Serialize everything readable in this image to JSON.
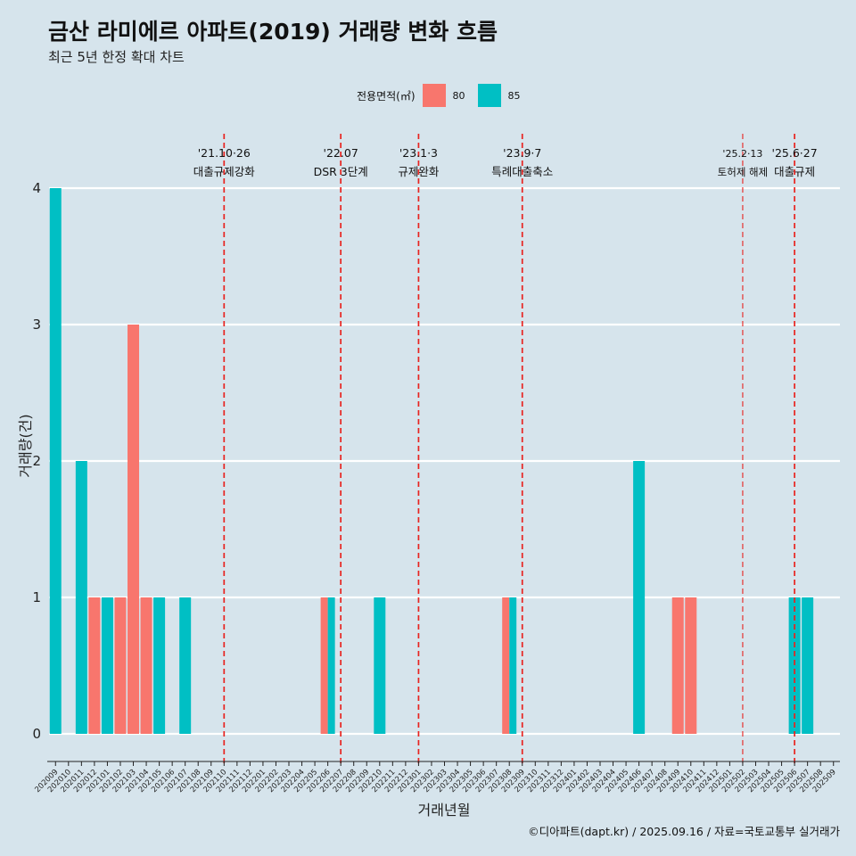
{
  "title": "금산 라미에르 아파트(2019) 거래량 변화 흐름",
  "subtitle": "최근 5년 한정 확대 차트",
  "caption": "©디아파트(dapt.kr) / 2025.09.16 / 자료=국토교통부 실거래가",
  "legend": {
    "title": "전용면적(㎡)",
    "items": [
      {
        "label": "80",
        "color": "#f8766d"
      },
      {
        "label": "85",
        "color": "#00bfc4"
      }
    ]
  },
  "chart_data": {
    "type": "bar",
    "xlabel": "거래년월",
    "ylabel": "거래량(건)",
    "ylim": [
      0,
      4
    ],
    "yticks": [
      0,
      1,
      2,
      3,
      4
    ],
    "grid": "horizontal",
    "legend_position": "top",
    "categories": [
      "202009",
      "202010",
      "202011",
      "202012",
      "202101",
      "202102",
      "202103",
      "202104",
      "202105",
      "202106",
      "202107",
      "202108",
      "202109",
      "202110",
      "202111",
      "202112",
      "202201",
      "202202",
      "202203",
      "202204",
      "202205",
      "202206",
      "202207",
      "202208",
      "202209",
      "202210",
      "202211",
      "202212",
      "202301",
      "202302",
      "202303",
      "202304",
      "202305",
      "202306",
      "202307",
      "202308",
      "202309",
      "202310",
      "202311",
      "202312",
      "202401",
      "202402",
      "202403",
      "202404",
      "202405",
      "202406",
      "202407",
      "202408",
      "202409",
      "202410",
      "202411",
      "202412",
      "202501",
      "202502",
      "202503",
      "202504",
      "202505",
      "202506",
      "202507",
      "202508",
      "202509"
    ],
    "series": [
      {
        "name": "80",
        "color": "#f8766d",
        "values": [
          0,
          0,
          0,
          1,
          0,
          1,
          3,
          1,
          0,
          0,
          0,
          0,
          0,
          0,
          0,
          0,
          0,
          0,
          0,
          0,
          0,
          1,
          0,
          0,
          0,
          0,
          0,
          0,
          0,
          0,
          0,
          0,
          0,
          0,
          0,
          1,
          0,
          0,
          0,
          0,
          0,
          0,
          0,
          0,
          0,
          0,
          0,
          0,
          1,
          1,
          0,
          0,
          0,
          0,
          0,
          0,
          0,
          0,
          0,
          0,
          0
        ]
      },
      {
        "name": "85",
        "color": "#00bfc4",
        "values": [
          4,
          0,
          2,
          0,
          1,
          0,
          0,
          0,
          1,
          0,
          1,
          0,
          0,
          0,
          0,
          0,
          0,
          0,
          0,
          0,
          0,
          1,
          0,
          0,
          0,
          1,
          0,
          0,
          0,
          0,
          0,
          0,
          0,
          0,
          0,
          1,
          0,
          0,
          0,
          0,
          0,
          0,
          0,
          0,
          0,
          2,
          0,
          0,
          0,
          0,
          0,
          0,
          0,
          0,
          0,
          0,
          0,
          1,
          1,
          0,
          0
        ]
      }
    ],
    "bars": [
      {
        "category": "202009",
        "series": "85",
        "value": 4,
        "position": "full"
      },
      {
        "category": "202011",
        "series": "85",
        "value": 2,
        "position": "full"
      },
      {
        "category": "202012",
        "series": "80",
        "value": 1,
        "position": "full"
      },
      {
        "category": "202101",
        "series": "85",
        "value": 1,
        "position": "full"
      },
      {
        "category": "202102",
        "series": "80",
        "value": 1,
        "position": "full"
      },
      {
        "category": "202103",
        "series": "80",
        "value": 3,
        "position": "full"
      },
      {
        "category": "202104",
        "series": "80",
        "value": 1,
        "position": "full"
      },
      {
        "category": "202105",
        "series": "85",
        "value": 1,
        "position": "full"
      },
      {
        "category": "202107",
        "series": "85",
        "value": 1,
        "position": "full"
      },
      {
        "category": "202206",
        "series": "80",
        "value": 1,
        "position": "left"
      },
      {
        "category": "202206",
        "series": "85",
        "value": 1,
        "position": "right"
      },
      {
        "category": "202210",
        "series": "85",
        "value": 1,
        "position": "full"
      },
      {
        "category": "202308",
        "series": "80",
        "value": 1,
        "position": "left"
      },
      {
        "category": "202308",
        "series": "85",
        "value": 1,
        "position": "right"
      },
      {
        "category": "202406",
        "series": "85",
        "value": 2,
        "position": "full"
      },
      {
        "category": "202409",
        "series": "80",
        "value": 1,
        "position": "full"
      },
      {
        "category": "202410",
        "series": "80",
        "value": 1,
        "position": "full"
      },
      {
        "category": "202506",
        "series": "85",
        "value": 1,
        "position": "full"
      },
      {
        "category": "202507",
        "series": "85",
        "value": 1,
        "position": "full"
      }
    ],
    "annotations": [
      {
        "date": "'21.10·26",
        "label": "대출규제강화",
        "x_index": 13.0,
        "style": "bold"
      },
      {
        "date": "'22.07",
        "label": "DSR 3단계",
        "x_index": 22.0,
        "style": "bold"
      },
      {
        "date": "'23.1·3",
        "label": "규제완화",
        "x_index": 28.0,
        "style": "bold"
      },
      {
        "date": "'23.9·7",
        "label": "특례대출축소",
        "x_index": 36.0,
        "style": "bold"
      },
      {
        "date": "'25.2·13",
        "label": "토허제 해제",
        "x_index": 53.0,
        "style": "thin"
      },
      {
        "date": "'25.6·27",
        "label": "대출규제",
        "x_index": 57.0,
        "style": "bold"
      }
    ]
  }
}
